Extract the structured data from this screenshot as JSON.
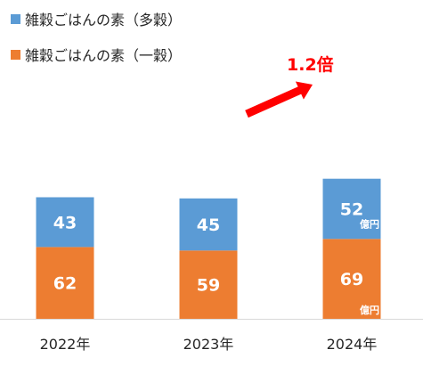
{
  "chart_data": {
    "type": "bar",
    "stacked": true,
    "categories": [
      "2022年",
      "2023年",
      "2024年"
    ],
    "series": [
      {
        "name": "雑穀ごはんの素（一穀）",
        "color": "#ed7d31",
        "values": [
          62,
          59,
          69
        ]
      },
      {
        "name": "雑穀ごはんの素（多穀）",
        "color": "#5b9bd5",
        "values": [
          43,
          45,
          52
        ]
      }
    ],
    "unit_label": "億円",
    "annotation": {
      "text": "1.2倍",
      "color": "#ff0000"
    },
    "legend_position": "top-left",
    "grid": false
  },
  "legend": [
    {
      "label": "雑穀ごはんの素（多穀）",
      "color": "#5b9bd5"
    },
    {
      "label": "雑穀ごはんの素（一穀）",
      "color": "#ed7d31"
    }
  ]
}
